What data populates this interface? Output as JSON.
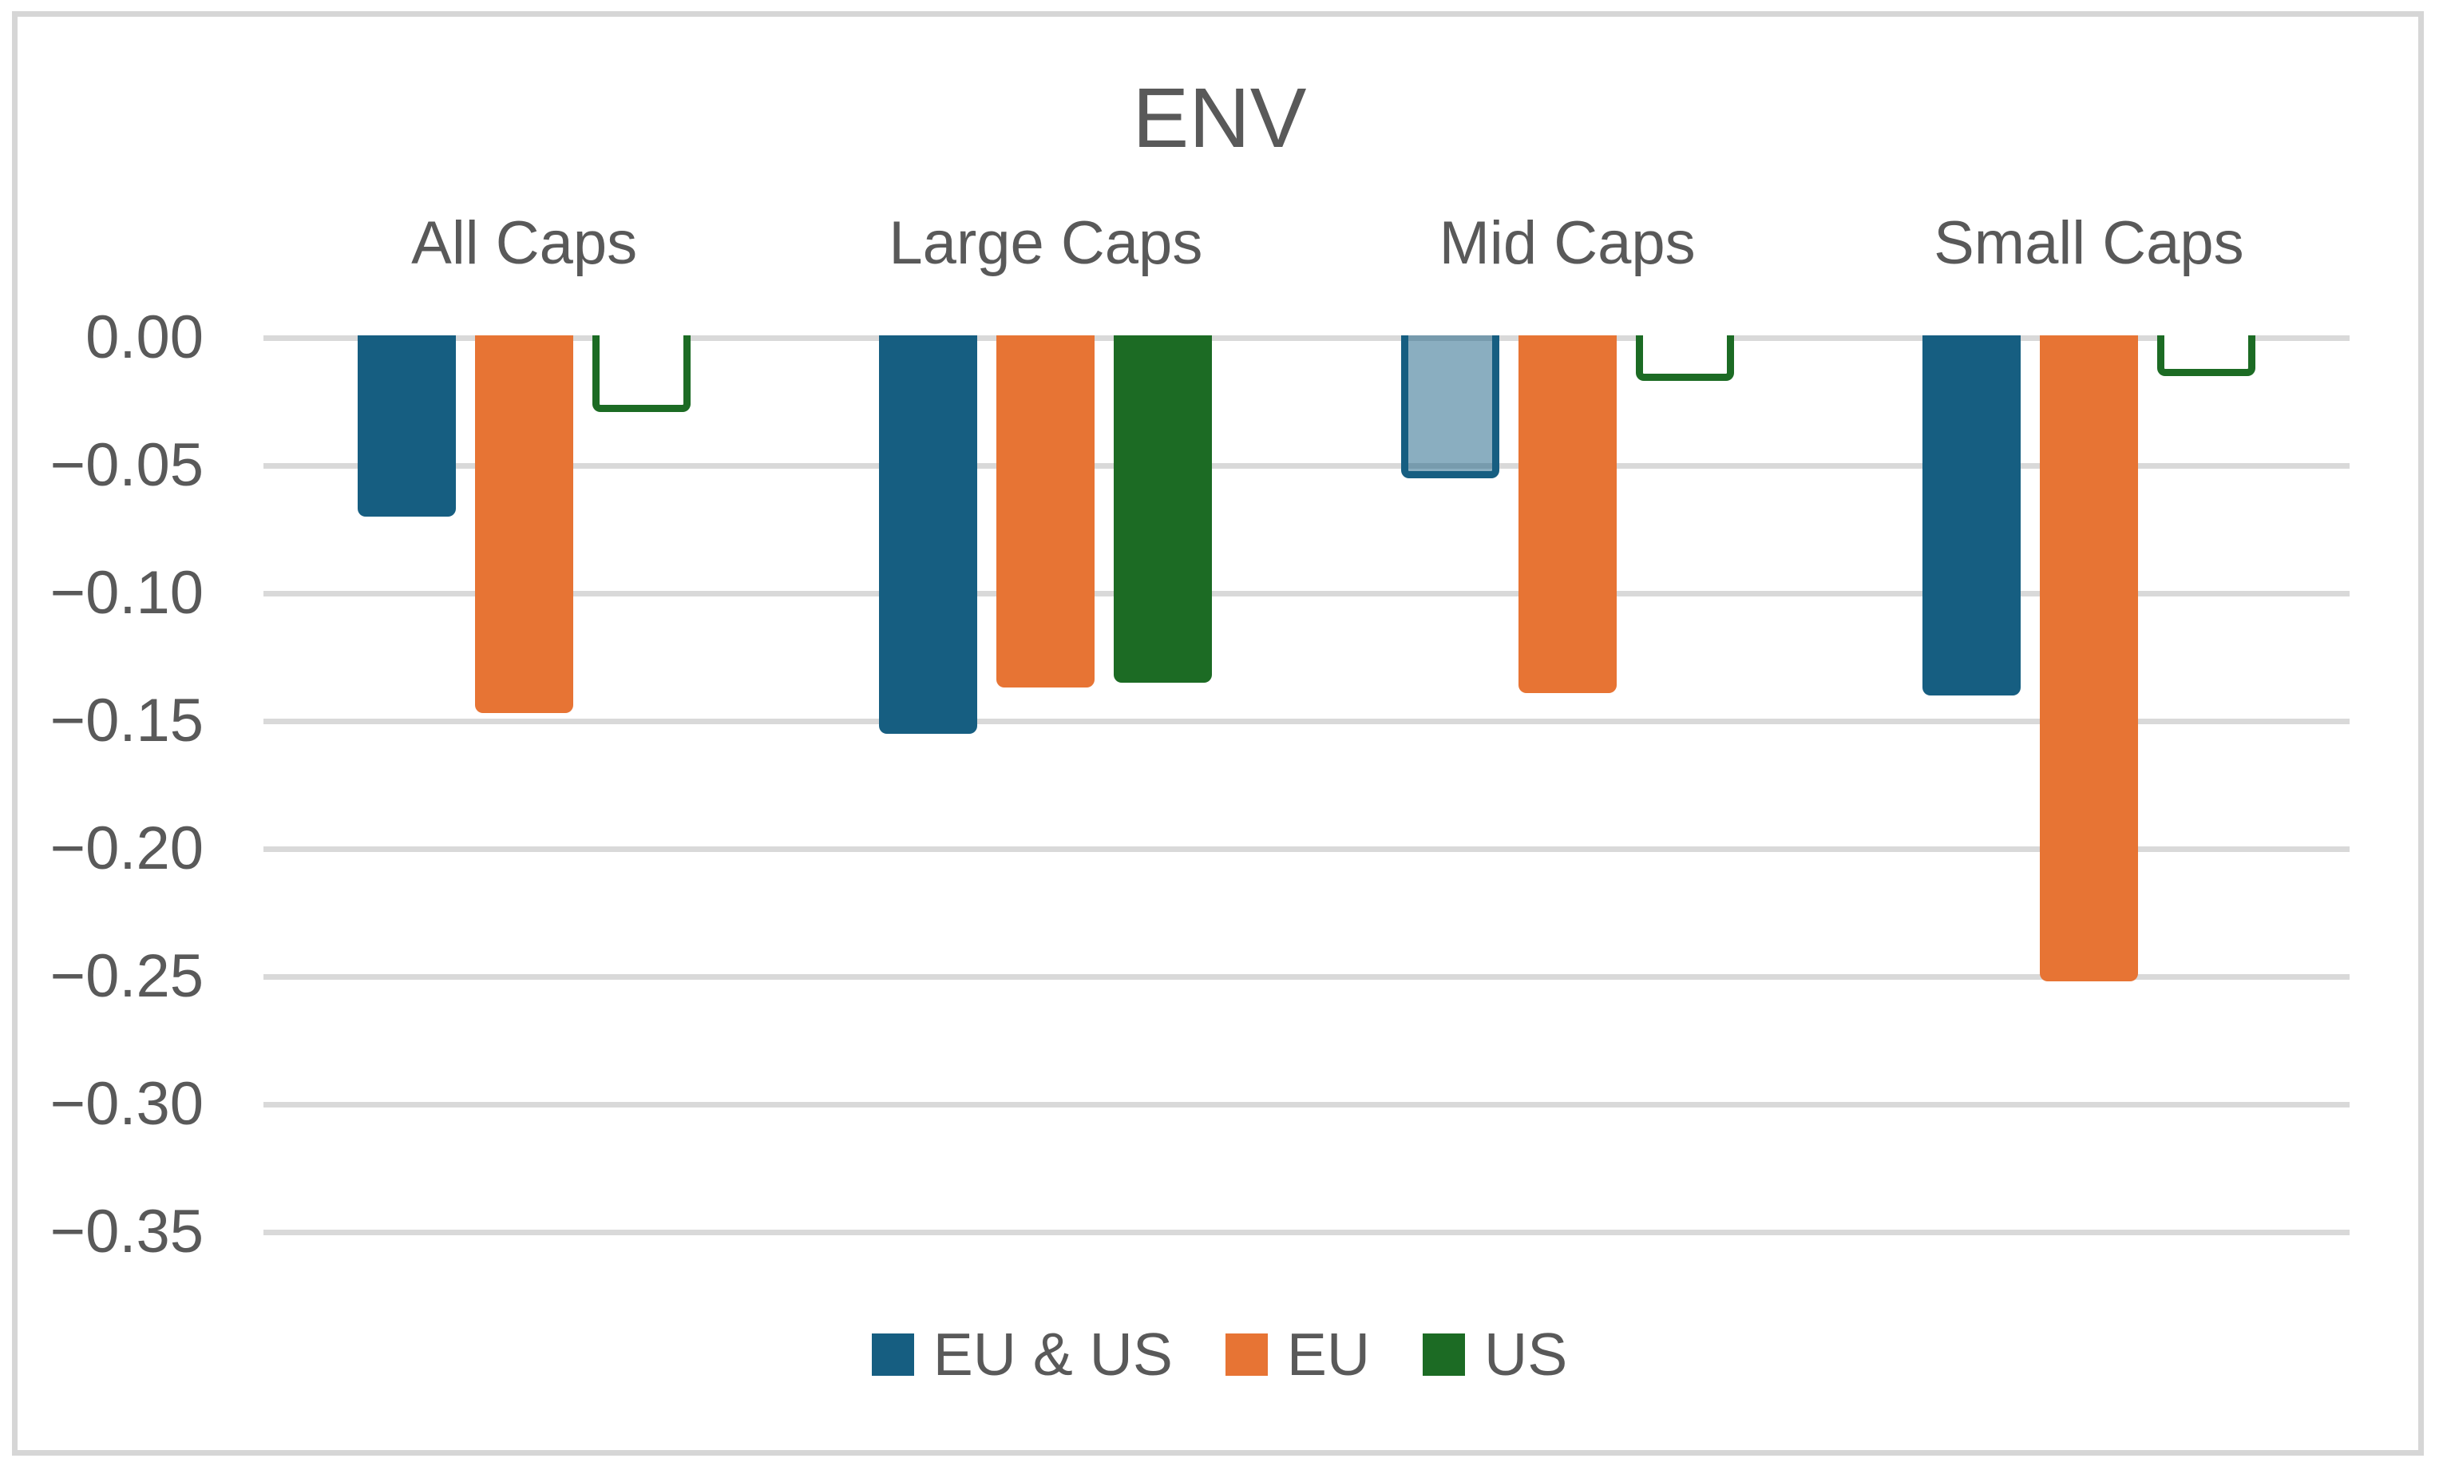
{
  "chart_data": {
    "type": "bar",
    "title": "ENV",
    "categories": [
      "All Caps",
      "Large Caps",
      "Mid Caps",
      "Small Caps"
    ],
    "series": [
      {
        "name": "EU & US",
        "color": "#165E81",
        "values": [
          -0.07,
          -0.155,
          -0.055,
          -0.14
        ],
        "bar_styles": [
          "solid",
          "solid",
          "translucent",
          "solid"
        ]
      },
      {
        "name": "EU",
        "color": "#E77434",
        "values": [
          -0.147,
          -0.137,
          -0.139,
          -0.252
        ],
        "bar_styles": [
          "solid",
          "solid",
          "solid",
          "solid"
        ]
      },
      {
        "name": "US",
        "color": "#1C6B24",
        "values": [
          -0.029,
          -0.135,
          -0.017,
          -0.015
        ],
        "bar_styles": [
          "outline",
          "solid",
          "outline",
          "outline"
        ]
      }
    ],
    "y_axis": {
      "min": -0.35,
      "max": 0.0,
      "tick_step": 0.05,
      "tick_labels": [
        "0.00",
        "−0.05",
        "−0.10",
        "−0.15",
        "−0.20",
        "−0.25",
        "−0.30",
        "−0.35"
      ]
    },
    "legend": {
      "position": "bottom",
      "entries": [
        "EU & US",
        "EU",
        "US"
      ]
    },
    "grid": true,
    "layout_hints": {
      "category_labels_position": "top",
      "bars_direction": "down-from-zero"
    },
    "colors": {
      "grid": "#D9D9D9",
      "text": "#595959",
      "frame": "#D6D6D6",
      "background": "#FFFFFF"
    }
  }
}
